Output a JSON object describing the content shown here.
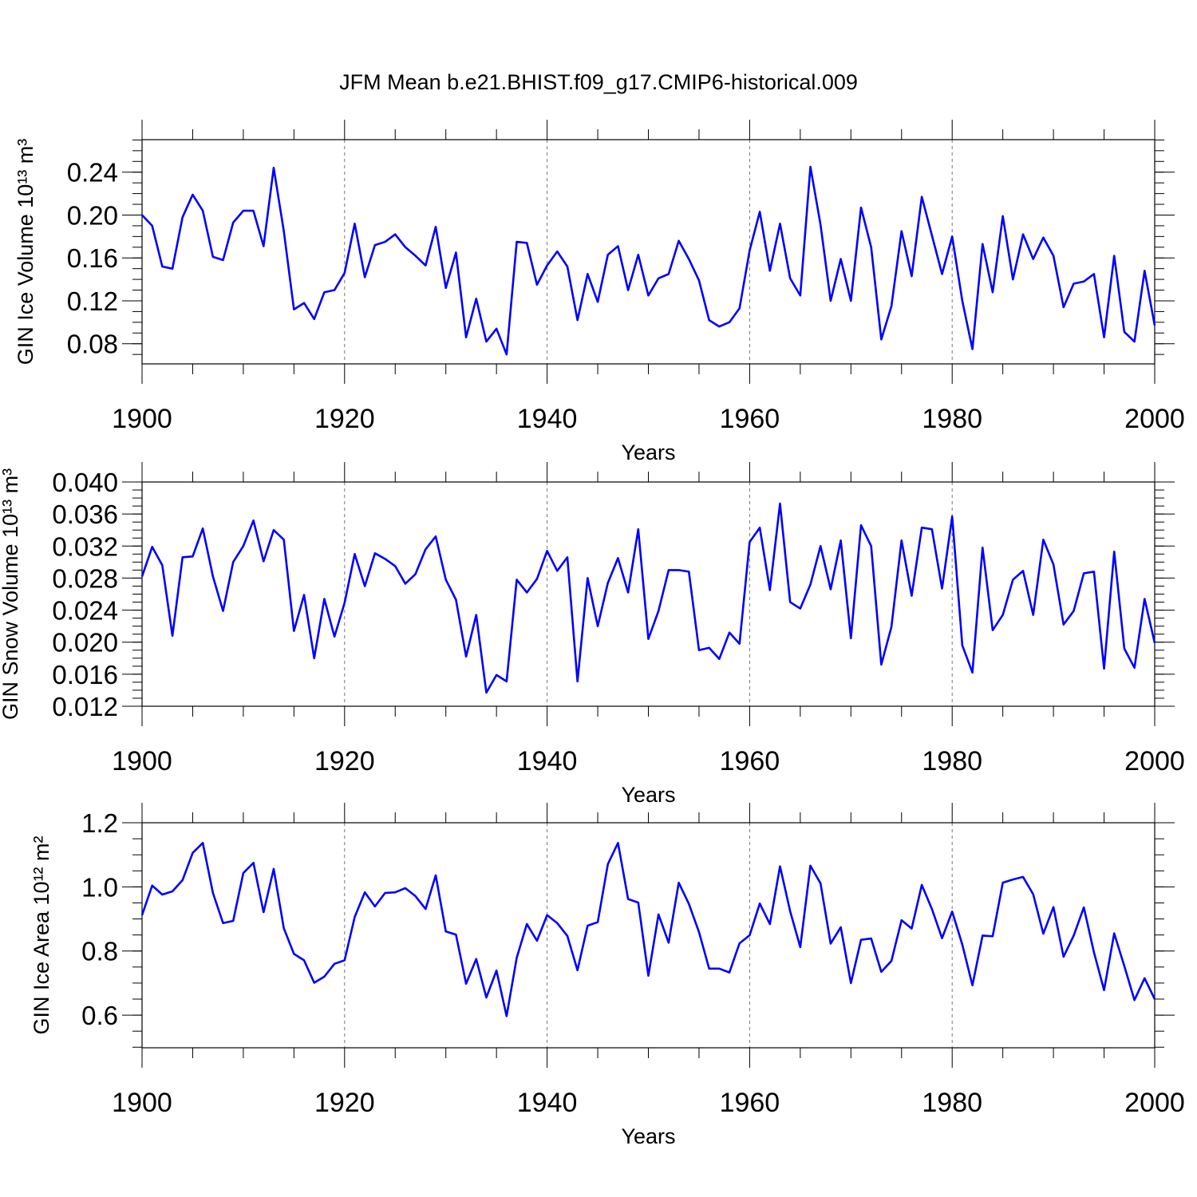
{
  "title": "JFM Mean b.e21.BHIST.f09_g17.CMIP6-historical.009",
  "colors": {
    "line": "#0000ff",
    "axis": "#000000",
    "grid": "#777777",
    "background": "#ffffff"
  },
  "chart_data": [
    {
      "type": "line",
      "ylabel_prefix": "GIN Ice Volume 10",
      "ylabel_exp": "13",
      "ylabel_unit": "m",
      "ylabel_unit_exp": "3",
      "xlabel": "Years",
      "xlim": [
        1900,
        2000
      ],
      "ylim": [
        0.0612,
        0.2703
      ],
      "x_ticks": [
        "1900",
        "1920",
        "1940",
        "1960",
        "1980",
        "2000"
      ],
      "y_ticks": [
        0.08,
        0.12,
        0.16,
        0.2,
        0.24
      ],
      "y_tick_labels": [
        "0.08",
        "0.12",
        "0.16",
        "0.20",
        "0.24"
      ],
      "y_minor_step": 0.01,
      "grid": "vertical dashed at 1920, 1940, 1960, 1980",
      "series": [
        {
          "name": "GIN Ice Volume",
          "x_start": 1900,
          "values": [
            0.2,
            0.19,
            0.152,
            0.15,
            0.198,
            0.219,
            0.204,
            0.161,
            0.158,
            0.193,
            0.204,
            0.204,
            0.171,
            0.244,
            0.185,
            0.112,
            0.118,
            0.103,
            0.128,
            0.13,
            0.146,
            0.192,
            0.142,
            0.172,
            0.175,
            0.182,
            0.17,
            0.162,
            0.153,
            0.189,
            0.132,
            0.165,
            0.086,
            0.122,
            0.082,
            0.094,
            0.07,
            0.175,
            0.174,
            0.135,
            0.153,
            0.166,
            0.152,
            0.102,
            0.145,
            0.119,
            0.163,
            0.171,
            0.13,
            0.163,
            0.125,
            0.141,
            0.145,
            0.176,
            0.159,
            0.139,
            0.102,
            0.096,
            0.1,
            0.113,
            0.167,
            0.203,
            0.148,
            0.192,
            0.141,
            0.125,
            0.245,
            0.191,
            0.12,
            0.159,
            0.12,
            0.207,
            0.17,
            0.084,
            0.115,
            0.185,
            0.143,
            0.217,
            0.181,
            0.145,
            0.18,
            0.12,
            0.075,
            0.173,
            0.128,
            0.199,
            0.14,
            0.182,
            0.159,
            0.179,
            0.162,
            0.114,
            0.136,
            0.138,
            0.145,
            0.086,
            0.162,
            0.091,
            0.082,
            0.148,
            0.097
          ]
        }
      ]
    },
    {
      "type": "line",
      "ylabel_prefix": "GIN Snow Volume 10",
      "ylabel_exp": "13",
      "ylabel_unit": "m",
      "ylabel_unit_exp": "3",
      "xlabel": "Years",
      "xlim": [
        1900,
        2000
      ],
      "ylim": [
        0.012,
        0.04
      ],
      "x_ticks": [
        "1900",
        "1920",
        "1940",
        "1960",
        "1980",
        "2000"
      ],
      "y_ticks": [
        0.012,
        0.016,
        0.02,
        0.024,
        0.028,
        0.032,
        0.036,
        0.04
      ],
      "y_tick_labels": [
        "0.012",
        "0.016",
        "0.020",
        "0.024",
        "0.028",
        "0.032",
        "0.036",
        "0.040"
      ],
      "y_minor_step": 0.001,
      "grid": "vertical dashed at 1920, 1940, 1960, 1980",
      "series": [
        {
          "name": "GIN Snow Volume",
          "x_start": 1900,
          "values": [
            0.0282,
            0.0319,
            0.0296,
            0.0208,
            0.0306,
            0.0307,
            0.0342,
            0.0282,
            0.0239,
            0.03,
            0.032,
            0.0352,
            0.0301,
            0.034,
            0.0328,
            0.0214,
            0.0259,
            0.018,
            0.0254,
            0.0207,
            0.0249,
            0.031,
            0.027,
            0.0311,
            0.0304,
            0.0295,
            0.0273,
            0.0285,
            0.0316,
            0.0332,
            0.0278,
            0.0253,
            0.0182,
            0.0234,
            0.0137,
            0.0159,
            0.0151,
            0.0278,
            0.0262,
            0.0279,
            0.0314,
            0.0289,
            0.0306,
            0.0151,
            0.028,
            0.022,
            0.0274,
            0.0305,
            0.0262,
            0.0341,
            0.0204,
            0.0239,
            0.029,
            0.029,
            0.0288,
            0.019,
            0.0193,
            0.0179,
            0.0212,
            0.0198,
            0.0325,
            0.0343,
            0.0265,
            0.0373,
            0.025,
            0.0242,
            0.0272,
            0.032,
            0.0266,
            0.0327,
            0.0205,
            0.0346,
            0.032,
            0.0172,
            0.0219,
            0.0327,
            0.0258,
            0.0343,
            0.0341,
            0.0267,
            0.0357,
            0.0196,
            0.0162,
            0.0318,
            0.0215,
            0.0234,
            0.0278,
            0.0289,
            0.0234,
            0.0328,
            0.0297,
            0.0222,
            0.0239,
            0.0286,
            0.0288,
            0.0167,
            0.0313,
            0.0192,
            0.0168,
            0.0254,
            0.0199
          ]
        }
      ]
    },
    {
      "type": "line",
      "ylabel_prefix": "GIN Ice Area 10",
      "ylabel_exp": "12",
      "ylabel_unit": "m",
      "ylabel_unit_exp": "2",
      "xlabel": "Years",
      "xlim": [
        1900,
        2000
      ],
      "ylim": [
        0.4982,
        1.2
      ],
      "x_ticks": [
        "1900",
        "1920",
        "1940",
        "1960",
        "1980",
        "2000"
      ],
      "y_ticks": [
        0.6,
        0.8,
        1.0,
        1.2
      ],
      "y_tick_labels": [
        "0.6",
        "0.8",
        "1.0",
        "1.2"
      ],
      "y_minor_step": 0.05,
      "grid": "vertical dashed at 1920, 1940, 1960, 1980",
      "series": [
        {
          "name": "GIN Ice Area",
          "x_start": 1900,
          "values": [
            0.912,
            1.004,
            0.976,
            0.986,
            1.021,
            1.106,
            1.137,
            0.981,
            0.887,
            0.894,
            1.043,
            1.075,
            0.921,
            1.056,
            0.871,
            0.791,
            0.771,
            0.701,
            0.72,
            0.76,
            0.771,
            0.906,
            0.983,
            0.939,
            0.981,
            0.983,
            0.996,
            0.971,
            0.931,
            1.036,
            0.861,
            0.851,
            0.698,
            0.775,
            0.655,
            0.739,
            0.597,
            0.779,
            0.884,
            0.832,
            0.912,
            0.887,
            0.847,
            0.74,
            0.879,
            0.89,
            1.071,
            1.137,
            0.962,
            0.951,
            0.723,
            0.914,
            0.826,
            1.013,
            0.947,
            0.859,
            0.745,
            0.745,
            0.733,
            0.824,
            0.849,
            0.948,
            0.884,
            1.064,
            0.924,
            0.812,
            1.066,
            1.011,
            0.823,
            0.874,
            0.7,
            0.835,
            0.839,
            0.735,
            0.769,
            0.896,
            0.87,
            1.006,
            0.931,
            0.84,
            0.923,
            0.82,
            0.693,
            0.848,
            0.846,
            1.013,
            1.023,
            1.031,
            0.977,
            0.854,
            0.937,
            0.782,
            0.848,
            0.936,
            0.796,
            0.678,
            0.855,
            0.753,
            0.647,
            0.715,
            0.65
          ]
        }
      ]
    }
  ]
}
